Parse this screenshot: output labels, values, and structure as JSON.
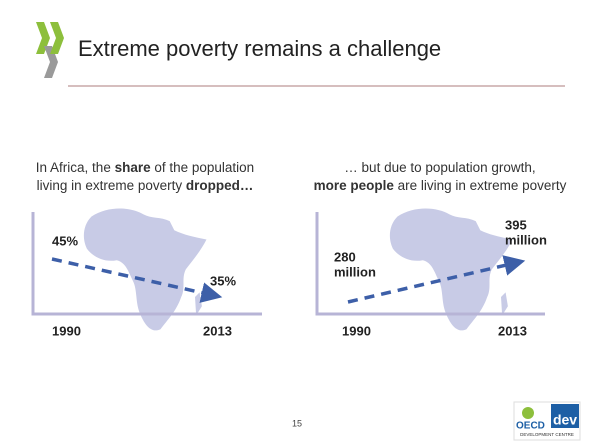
{
  "header": {
    "title": "Extreme poverty remains a challenge"
  },
  "panels": [
    {
      "caption": [
        [
          {
            "text": "In Africa, the ",
            "bold": false
          },
          {
            "text": "share",
            "bold": true
          },
          {
            "text": " of the population",
            "bold": false
          }
        ],
        [
          {
            "text": "living in extreme poverty ",
            "bold": false
          },
          {
            "text": "dropped…",
            "bold": true
          }
        ]
      ],
      "start_label": [
        "45%"
      ],
      "end_label": [
        "35%"
      ],
      "start_year": "1990",
      "end_year": "2013"
    },
    {
      "caption": [
        [
          {
            "text": "… but due to population growth,",
            "bold": false
          }
        ],
        [
          {
            "text": "more people",
            "bold": true
          },
          {
            "text": " are living in extreme poverty",
            "bold": false
          }
        ]
      ],
      "start_label": [
        "280",
        "million"
      ],
      "end_label": [
        "395",
        "million"
      ],
      "start_year": "1990",
      "end_year": "2013"
    }
  ],
  "footer": {
    "page_number": "15",
    "logo": {
      "name": "OECD",
      "suffix": "dev",
      "subtitle": "DEVELOPMENT CENTRE"
    }
  }
}
